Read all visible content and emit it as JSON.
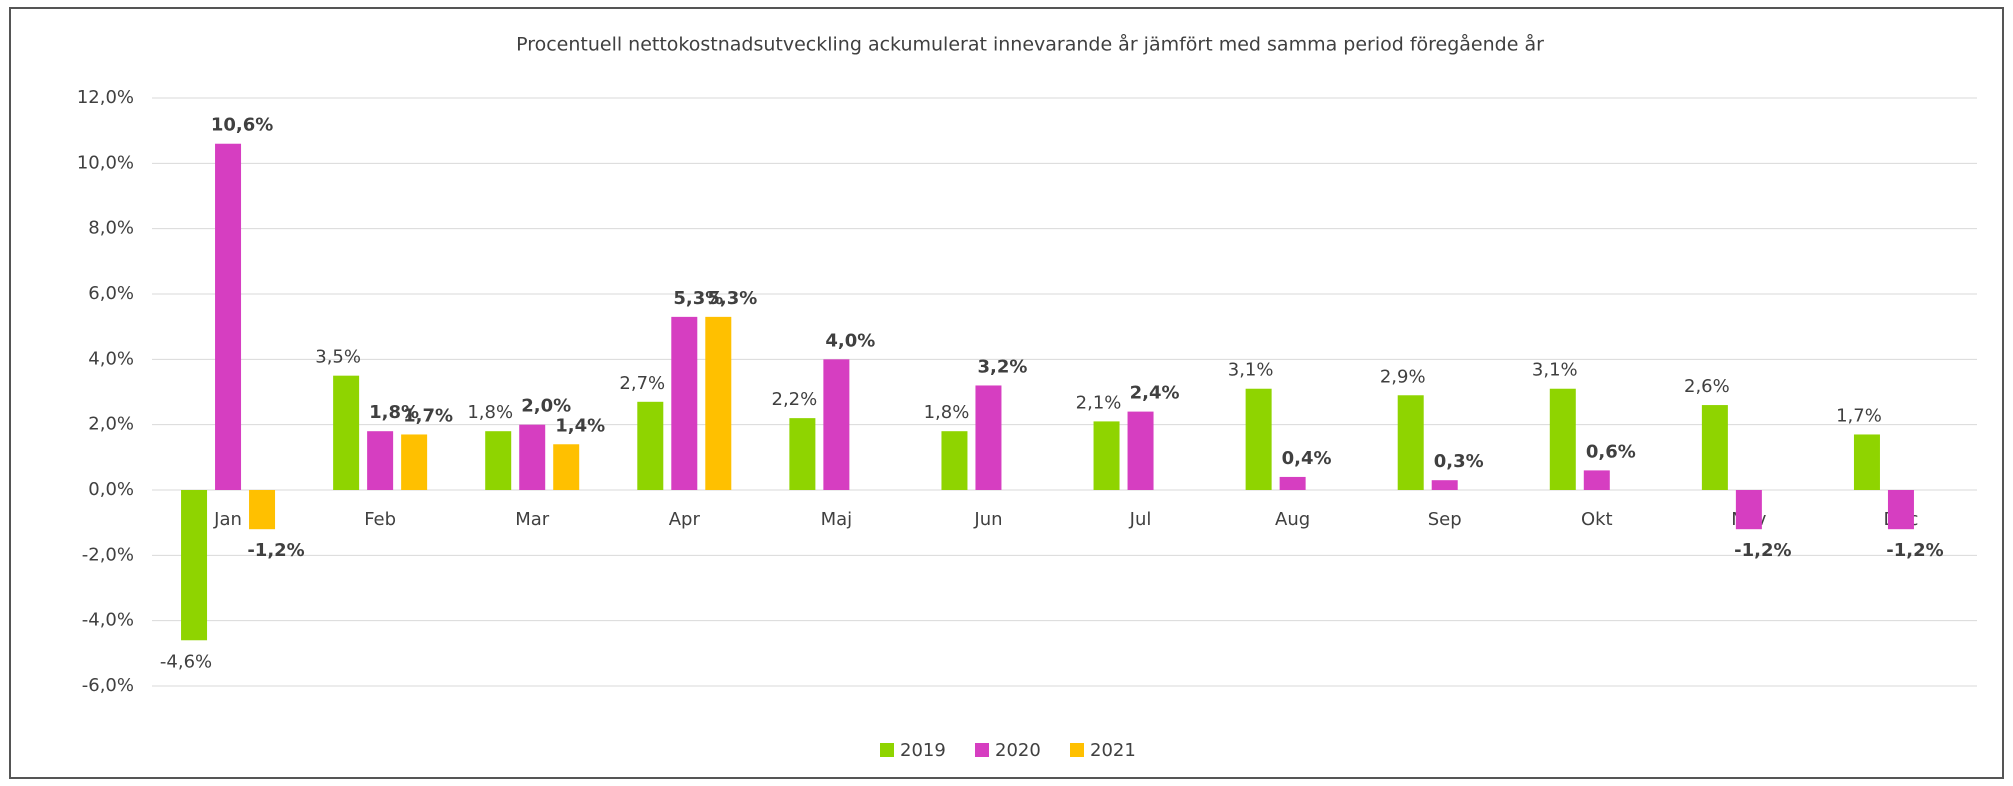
{
  "chart_data": {
    "type": "bar",
    "title": "Procentuell nettokostnadsutveckling ackumulerat innevarande år jämfört med samma period föregående år",
    "categories": [
      "Jan",
      "Feb",
      "Mar",
      "Apr",
      "Maj",
      "Jun",
      "Jul",
      "Aug",
      "Sep",
      "Okt",
      "Nov",
      "Dec"
    ],
    "series": [
      {
        "name": "2019",
        "color": "#8fd400",
        "values": [
          -4.6,
          3.5,
          1.8,
          2.7,
          2.2,
          1.8,
          2.1,
          3.1,
          2.9,
          3.1,
          2.6,
          1.7
        ],
        "value_labels": [
          "-4,6%",
          "3,5%",
          "1,8%",
          "2,7%",
          "2,2%",
          "1,8%",
          "2,1%",
          "3,1%",
          "2,9%",
          "3,1%",
          "2,6%",
          "1,7%"
        ]
      },
      {
        "name": "2020",
        "color": "#d63ec1",
        "values": [
          10.6,
          1.8,
          2.0,
          5.3,
          4.0,
          3.2,
          2.4,
          0.4,
          0.3,
          0.6,
          -1.2,
          -1.2
        ],
        "value_labels": [
          "10,6%",
          "1,8%",
          "2,0%",
          "5,3%",
          "4,0%",
          "3,2%",
          "2,4%",
          "0,4%",
          "0,3%",
          "0,6%",
          "-1,2%",
          "-1,2%"
        ]
      },
      {
        "name": "2021",
        "color": "#ffc000",
        "values": [
          -1.2,
          1.7,
          1.4,
          5.3,
          null,
          null,
          null,
          null,
          null,
          null,
          null,
          null
        ],
        "value_labels": [
          "-1,2%",
          "1,7%",
          "1,4%",
          "5,3%",
          null,
          null,
          null,
          null,
          null,
          null,
          null,
          null
        ]
      }
    ],
    "ylim": [
      -6,
      12
    ],
    "yticks": [
      {
        "value": -6,
        "label": "-6,0%"
      },
      {
        "value": -4,
        "label": "-4,0%"
      },
      {
        "value": -2,
        "label": "-2,0%"
      },
      {
        "value": 0,
        "label": "0,0%"
      },
      {
        "value": 2,
        "label": "2,0%"
      },
      {
        "value": 4,
        "label": "4,0%"
      },
      {
        "value": 6,
        "label": "6,0%"
      },
      {
        "value": 8,
        "label": "8,0%"
      },
      {
        "value": 10,
        "label": "10,0%"
      },
      {
        "value": 12,
        "label": "12,0%"
      }
    ],
    "grid": true,
    "legend": "bottom"
  }
}
